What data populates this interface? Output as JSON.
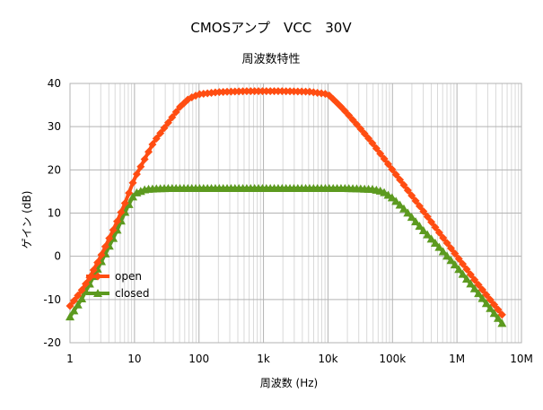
{
  "chart_data": {
    "type": "line",
    "title": "CMOSアンプ　VCC　30V",
    "subtitle": "周波数特性",
    "xlabel": "周波数 (Hz)",
    "ylabel": "ゲイン (dB)",
    "x_scale": "log",
    "xlim": [
      1,
      10000000
    ],
    "ylim": [
      -20,
      40
    ],
    "grid": true,
    "legend_position": "inside-lower-left",
    "x_tick_labels": [
      "1",
      "10",
      "100",
      "1k",
      "10k",
      "100k",
      "1M",
      "10M"
    ],
    "y_tick_labels": [
      "-20",
      "-10",
      "0",
      "10",
      "20",
      "30",
      "40"
    ],
    "series": [
      {
        "name": "open",
        "color": "#ff4d12",
        "marker": "diamond",
        "x": [
          1,
          1.5,
          2,
          3,
          5,
          7,
          10,
          15,
          20,
          30,
          50,
          70,
          100,
          200,
          500,
          1000,
          2000,
          5000,
          10000,
          15000,
          20000,
          30000,
          50000,
          100000,
          200000,
          500000,
          1000000,
          2000000,
          5000000
        ],
        "y": [
          -11.5,
          -8,
          -5,
          0,
          7,
          12,
          18,
          23,
          26.5,
          30,
          34.5,
          36.5,
          37.5,
          38,
          38.2,
          38.2,
          38.2,
          38.1,
          37.5,
          35,
          33,
          30,
          26,
          20,
          14,
          6,
          0,
          -6,
          -13.5
        ]
      },
      {
        "name": "closed",
        "color": "#5c9a1f",
        "marker": "triangle",
        "x": [
          1,
          1.5,
          2,
          3,
          5,
          7,
          10,
          15,
          20,
          30,
          50,
          100,
          200,
          1000,
          5000,
          10000,
          20000,
          50000,
          70000,
          100000,
          150000,
          200000,
          300000,
          500000,
          1000000,
          2000000,
          5000000
        ],
        "y": [
          -14,
          -10,
          -6.5,
          -1.5,
          5,
          10,
          14.5,
          15.5,
          15.6,
          15.7,
          15.7,
          15.7,
          15.7,
          15.7,
          15.7,
          15.7,
          15.7,
          15.5,
          15,
          13.5,
          11,
          9,
          6,
          2.5,
          -2.5,
          -8,
          -15.5
        ]
      }
    ]
  }
}
